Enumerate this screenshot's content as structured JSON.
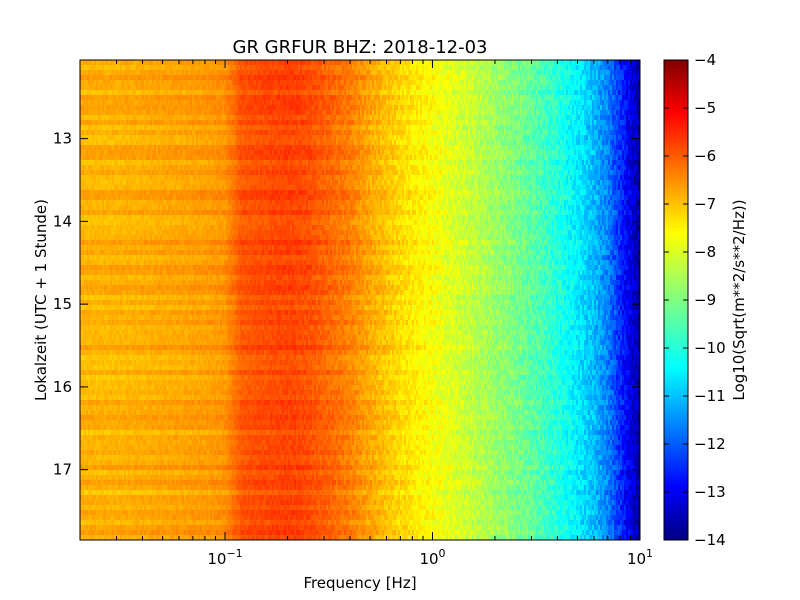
{
  "chart_data": {
    "type": "heatmap",
    "title": "GR GRFUR BHZ: 2018-12-03",
    "xlabel": "Frequency [Hz]",
    "ylabel": "Lokalzeit (UTC + 1 Stunde)",
    "x_scale": "log",
    "xlim": [
      0.02,
      10
    ],
    "ylim": [
      12.05,
      17.85
    ],
    "y_inverted": true,
    "x_ticks": [
      {
        "value": 0.1,
        "base": "10",
        "exp": "−1"
      },
      {
        "value": 1,
        "base": "10",
        "exp": "0"
      },
      {
        "value": 10,
        "base": "10",
        "exp": "1"
      }
    ],
    "y_ticks": [
      {
        "value": 13,
        "label": "13"
      },
      {
        "value": 14,
        "label": "14"
      },
      {
        "value": 15,
        "label": "15"
      },
      {
        "value": 16,
        "label": "16"
      },
      {
        "value": 17,
        "label": "17"
      }
    ],
    "colorbar": {
      "label": "Log10(Sqrt(m**2/s**2/Hz))",
      "colormap": "jet",
      "range": [
        -14,
        -4
      ],
      "ticks": [
        "−4",
        "−5",
        "−6",
        "−7",
        "−8",
        "−9",
        "−10",
        "−11",
        "−12",
        "−13",
        "−14"
      ]
    },
    "spectrum_profile": {
      "frequency_hz": [
        0.02,
        0.03,
        0.05,
        0.08,
        0.1,
        0.12,
        0.15,
        0.2,
        0.25,
        0.3,
        0.4,
        0.5,
        0.7,
        1.0,
        1.5,
        2.0,
        3.0,
        4.0,
        5.0,
        6.0,
        7.0,
        8.0,
        9.0,
        10.0
      ],
      "level_log10": [
        -7.0,
        -7.0,
        -6.9,
        -6.8,
        -6.7,
        -6.1,
        -6.0,
        -5.9,
        -6.0,
        -6.2,
        -6.5,
        -6.9,
        -7.4,
        -7.8,
        -8.3,
        -8.7,
        -9.3,
        -9.9,
        -10.4,
        -10.9,
        -11.5,
        -12.3,
        -13.0,
        -13.6
      ]
    }
  }
}
